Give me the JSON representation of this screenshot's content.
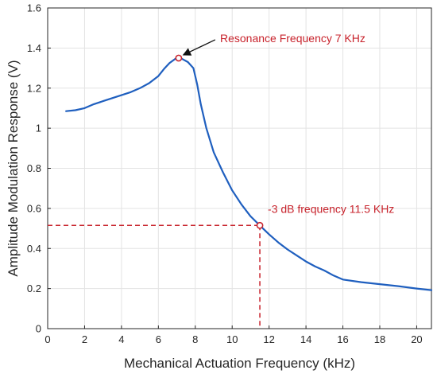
{
  "chart_data": {
    "type": "line",
    "xlabel": "Mechanical Actuation Frequency (kHz)",
    "ylabel": "Amplitude Modulation Response (V)",
    "xlim": [
      0,
      20.8
    ],
    "ylim": [
      0,
      1.6
    ],
    "xticks": [
      0,
      2,
      4,
      6,
      8,
      10,
      12,
      14,
      16,
      18,
      20
    ],
    "yticks": [
      0,
      0.2,
      0.4,
      0.6,
      0.8,
      1,
      1.2,
      1.4,
      1.6
    ],
    "xtick_labels": [
      "0",
      "2",
      "4",
      "6",
      "8",
      "10",
      "12",
      "14",
      "16",
      "18",
      "20"
    ],
    "ytick_labels": [
      "0",
      "0.2",
      "0.4",
      "0.6",
      "0.8",
      "1",
      "1.2",
      "1.4",
      "1.6"
    ],
    "grid": true,
    "series": [
      {
        "color": "#1f5fbf",
        "x": [
          1,
          1.5,
          2,
          2.5,
          3,
          3.5,
          4,
          4.5,
          5,
          5.5,
          6,
          6.3,
          6.6,
          6.9,
          7.1,
          7.3,
          7.6,
          7.9,
          8.1,
          8.3,
          8.6,
          9,
          9.5,
          10,
          10.5,
          11,
          11.5,
          12,
          12.5,
          13,
          13.5,
          14,
          14.5,
          15,
          15.5,
          16,
          17,
          18,
          19,
          20,
          20.8
        ],
        "y": [
          1.085,
          1.09,
          1.1,
          1.12,
          1.135,
          1.15,
          1.165,
          1.18,
          1.2,
          1.225,
          1.26,
          1.295,
          1.325,
          1.345,
          1.35,
          1.345,
          1.33,
          1.3,
          1.22,
          1.12,
          1.0,
          0.88,
          0.78,
          0.69,
          0.62,
          0.56,
          0.515,
          0.47,
          0.43,
          0.395,
          0.365,
          0.335,
          0.31,
          0.29,
          0.265,
          0.245,
          0.232,
          0.222,
          0.212,
          0.2,
          0.192
        ]
      }
    ],
    "annotations": [
      {
        "text": "Resonance Frequency 7 KHz",
        "x": 7.1,
        "y": 1.35,
        "color": "#c8232c",
        "arrow": true
      },
      {
        "text": "-3 dB frequency 11.5 KHz",
        "x": 11.5,
        "y": 0.515,
        "color": "#c8232c",
        "dashed_guides": true
      }
    ]
  }
}
